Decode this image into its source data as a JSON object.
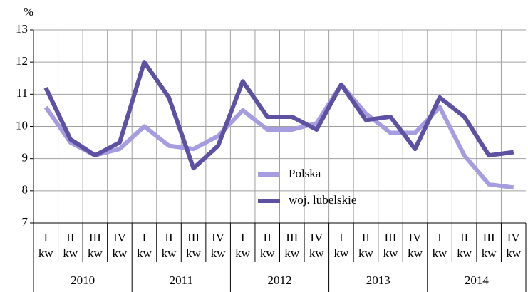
{
  "chart_data": {
    "type": "line",
    "y_unit": "%",
    "categories": [
      [
        "I",
        "kw"
      ],
      [
        "II",
        "kw"
      ],
      [
        "III",
        "kw"
      ],
      [
        "IV",
        "kw"
      ],
      [
        "I",
        "kw"
      ],
      [
        "II",
        "kw"
      ],
      [
        "III",
        "kw"
      ],
      [
        "IV",
        "kw"
      ],
      [
        "I",
        "kw"
      ],
      [
        "II",
        "kw"
      ],
      [
        "III",
        "kw"
      ],
      [
        "IV",
        "kw"
      ],
      [
        "I",
        "kw"
      ],
      [
        "II",
        "kw"
      ],
      [
        "III",
        "kw"
      ],
      [
        "IV",
        "kw"
      ],
      [
        "I",
        "kw"
      ],
      [
        "II",
        "kw"
      ],
      [
        "III",
        "kw"
      ],
      [
        "IV",
        "kw"
      ]
    ],
    "years": [
      "2010",
      "2011",
      "2012",
      "2013",
      "2014"
    ],
    "series": [
      {
        "name": "Polska",
        "color": "#a69de0",
        "values": [
          10.6,
          9.5,
          9.1,
          9.3,
          10.0,
          9.4,
          9.3,
          9.7,
          10.5,
          9.9,
          9.9,
          10.1,
          11.3,
          10.4,
          9.8,
          9.8,
          10.6,
          9.1,
          8.2,
          8.1
        ]
      },
      {
        "name": "woj. lubelskie",
        "color": "#5e50a2",
        "values": [
          11.2,
          9.6,
          9.1,
          9.5,
          12.0,
          10.9,
          8.7,
          9.4,
          11.4,
          10.3,
          10.3,
          9.9,
          11.3,
          10.2,
          10.3,
          9.3,
          10.9,
          10.3,
          9.1,
          9.2
        ]
      }
    ],
    "ylim": [
      7,
      13
    ],
    "yticks": [
      7,
      8,
      9,
      10,
      11,
      12,
      13
    ],
    "grid": true
  }
}
